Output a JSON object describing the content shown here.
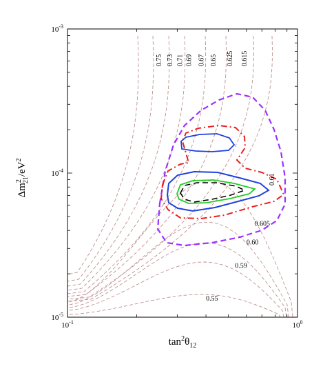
{
  "chart_data": {
    "type": "contour",
    "xlabel": {
      "base": "tan",
      "sup": "2",
      "mid": "θ",
      "sub": "12"
    },
    "ylabel": {
      "pre": "Δm",
      "sup": "2",
      "sub": "21",
      "post": "/eV",
      "sup2": "2"
    },
    "x_scale": "log",
    "y_scale": "log",
    "xlim": [
      0.1,
      1.0
    ],
    "ylim": [
      1e-05,
      0.001
    ],
    "x_ticks": [
      {
        "value": 0.1,
        "label": "10",
        "exp": "-1"
      },
      {
        "value": 1.0,
        "label": "10",
        "exp": "0"
      }
    ],
    "y_ticks": [
      {
        "value": 1e-05,
        "label": "10",
        "exp": "-5"
      },
      {
        "value": 0.0001,
        "label": "10",
        "exp": "-4"
      },
      {
        "value": 0.001,
        "label": "10",
        "exp": "-3"
      }
    ],
    "iso_contours": [
      {
        "name": "0.75",
        "x_label": 0.255,
        "y_label": 0.00055,
        "vertical": true
      },
      {
        "name": "0.73",
        "x_label": 0.285,
        "y_label": 0.00055,
        "vertical": true
      },
      {
        "name": "0.71",
        "x_label": 0.315,
        "y_label": 0.00055,
        "vertical": true
      },
      {
        "name": "0.69",
        "x_label": 0.345,
        "y_label": 0.00055,
        "vertical": true
      },
      {
        "name": "0.67",
        "x_label": 0.39,
        "y_label": 0.00055,
        "vertical": true
      },
      {
        "name": "0.65",
        "x_label": 0.44,
        "y_label": 0.00055,
        "vertical": true
      },
      {
        "name": "0.625",
        "x_label": 0.52,
        "y_label": 0.00055,
        "vertical": true
      },
      {
        "name": "0.615",
        "x_label": 0.6,
        "y_label": 0.00055,
        "vertical": true
      },
      {
        "name": "0.61",
        "x_label": 0.79,
        "y_label": 8.2e-05,
        "vertical": true
      },
      {
        "name": "0.605",
        "x_label": 0.65,
        "y_label": 4.3e-05,
        "vertical": false
      },
      {
        "name": "0.60",
        "x_label": 0.6,
        "y_label": 3.2e-05,
        "vertical": false
      },
      {
        "name": "0.59",
        "x_label": 0.535,
        "y_label": 2.2e-05,
        "vertical": false
      },
      {
        "name": "0.55",
        "x_label": 0.4,
        "y_label": 1.3e-05,
        "vertical": false
      }
    ],
    "regions": [
      {
        "name": "purple-dashed",
        "color": "#9b30ff",
        "style": "dashed"
      },
      {
        "name": "red-dashdot",
        "color": "#e8201f",
        "style": "dashdot"
      },
      {
        "name": "blue-solid",
        "color": "#1f3fdf",
        "style": "solid"
      },
      {
        "name": "green-solid",
        "color": "#22cc22",
        "style": "solid"
      },
      {
        "name": "black-dashed",
        "color": "#000000",
        "style": "dashed"
      }
    ],
    "colors": {
      "iso": "#c09090",
      "frame": "#000000"
    }
  }
}
